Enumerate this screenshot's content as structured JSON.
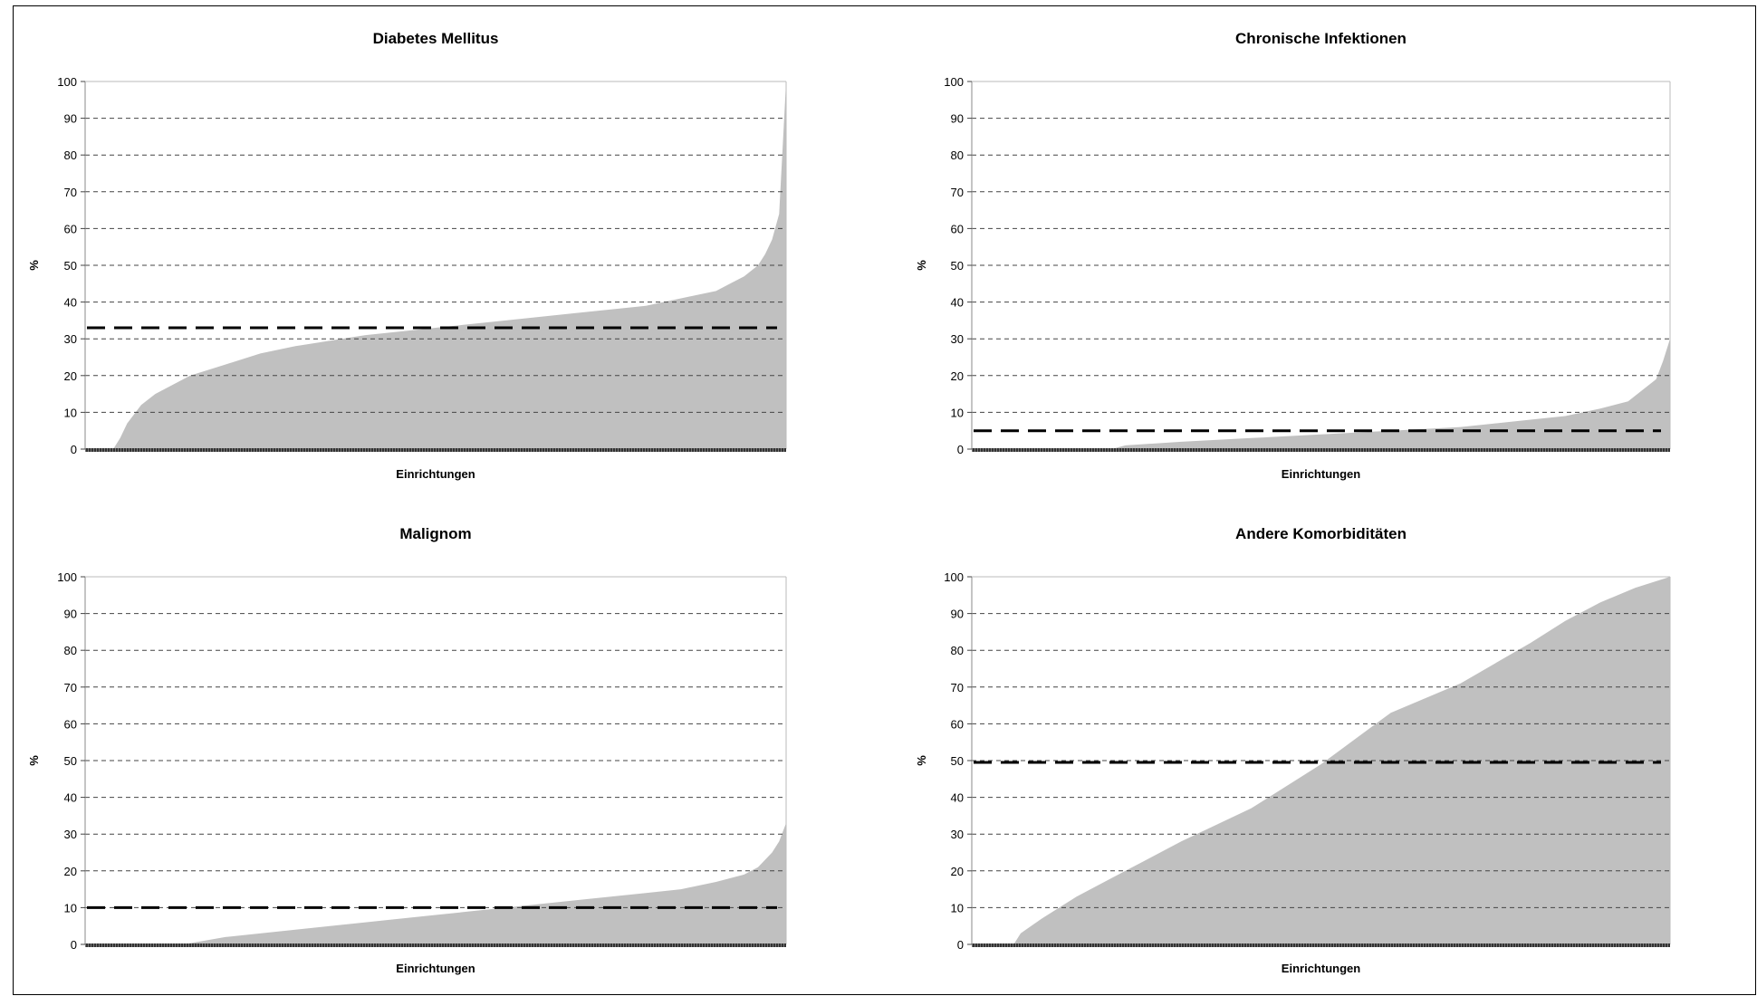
{
  "chart_data": [
    {
      "type": "area",
      "title": "Diabetes Mellitus",
      "xlabel": "Einrichtungen",
      "ylabel": "%",
      "ylim": [
        0,
        100
      ],
      "yticks": [
        0,
        10,
        20,
        30,
        40,
        50,
        60,
        70,
        80,
        90,
        100
      ],
      "grid": true,
      "x": [
        0,
        4,
        5,
        6,
        8,
        10,
        15,
        20,
        25,
        30,
        40,
        50,
        60,
        70,
        80,
        85,
        90,
        92,
        94,
        96,
        97,
        98,
        99,
        100
      ],
      "values": [
        0,
        0,
        3,
        7,
        12,
        15,
        20,
        23,
        26,
        28,
        31,
        33,
        35,
        37,
        39,
        41,
        43,
        45,
        47,
        50,
        53,
        57,
        64,
        100
      ],
      "reference_line": 33,
      "fill_color": "#c0c0c0"
    },
    {
      "type": "area",
      "title": "Chronische Infektionen",
      "xlabel": "Einrichtungen",
      "ylabel": "%",
      "ylim": [
        0,
        100
      ],
      "yticks": [
        0,
        10,
        20,
        30,
        40,
        50,
        60,
        70,
        80,
        90,
        100
      ],
      "grid": true,
      "x": [
        0,
        20,
        22,
        30,
        40,
        50,
        60,
        70,
        80,
        85,
        90,
        94,
        96,
        98,
        99,
        100
      ],
      "values": [
        0,
        0,
        1,
        2,
        3,
        4,
        5,
        6,
        8,
        9,
        11,
        13,
        16,
        19,
        24,
        30
      ],
      "reference_line": 5,
      "fill_color": "#c0c0c0"
    },
    {
      "type": "area",
      "title": "Malignom",
      "xlabel": "Einrichtungen",
      "ylabel": "%",
      "ylim": [
        0,
        100
      ],
      "yticks": [
        0,
        10,
        20,
        30,
        40,
        50,
        60,
        70,
        80,
        90,
        100
      ],
      "grid": true,
      "x": [
        0,
        14,
        20,
        30,
        40,
        50,
        60,
        70,
        80,
        85,
        90,
        94,
        96,
        98,
        99,
        100
      ],
      "values": [
        0,
        0,
        2,
        4,
        6,
        8,
        10,
        12,
        14,
        15,
        17,
        19,
        21,
        25,
        28,
        33
      ],
      "reference_line": 10,
      "fill_color": "#c0c0c0"
    },
    {
      "type": "area",
      "title": "Andere Komorbiditäten",
      "xlabel": "Einrichtungen",
      "ylabel": "%",
      "ylim": [
        0,
        100
      ],
      "yticks": [
        0,
        10,
        20,
        30,
        40,
        50,
        60,
        70,
        80,
        90,
        100
      ],
      "grid": true,
      "x": [
        0,
        6,
        7,
        10,
        15,
        20,
        30,
        40,
        50,
        60,
        70,
        80,
        85,
        90,
        95,
        100
      ],
      "values": [
        0,
        0,
        3,
        7,
        13,
        18,
        28,
        37,
        49,
        63,
        71,
        82,
        88,
        93,
        97,
        100
      ],
      "reference_line": 49.5,
      "fill_color": "#c0c0c0"
    }
  ]
}
